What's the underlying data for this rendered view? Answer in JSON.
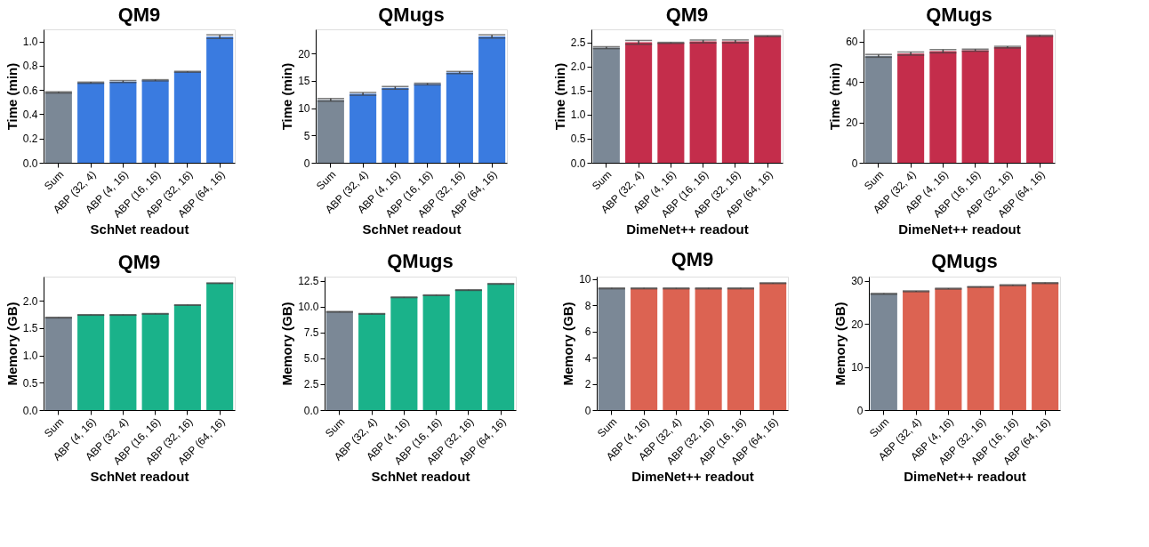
{
  "chart_data": [
    {
      "type": "bar",
      "title": "QM9",
      "xlabel": "SchNet readout",
      "ylabel": "Time (min)",
      "categories": [
        "Sum",
        "ABP (32, 4)",
        "ABP (4, 16)",
        "ABP (16, 16)",
        "ABP (32, 16)",
        "ABP (64, 16)"
      ],
      "values": [
        0.58,
        0.66,
        0.67,
        0.68,
        0.75,
        1.04
      ],
      "errors": [
        0.005,
        0.005,
        0.008,
        0.005,
        0.004,
        0.015
      ],
      "colors": [
        "#7b8896",
        "#3a7be0",
        "#3a7be0",
        "#3a7be0",
        "#3a7be0",
        "#3a7be0"
      ],
      "ylim": [
        0,
        1.1
      ],
      "yticks": [
        {
          "value": 0,
          "label": "0.0"
        },
        {
          "value": 0.2,
          "label": "0.2"
        },
        {
          "value": 0.4,
          "label": "0.4"
        },
        {
          "value": 0.6,
          "label": "0.6"
        },
        {
          "value": 0.8,
          "label": "0.8"
        },
        {
          "value": 1,
          "label": "1.0"
        }
      ],
      "grid": false
    },
    {
      "type": "bar",
      "title": "QMugs",
      "xlabel": "SchNet readout",
      "ylabel": "Time (min)",
      "categories": [
        "Sum",
        "ABP (32, 4)",
        "ABP (4, 16)",
        "ABP (16, 16)",
        "ABP (32, 16)",
        "ABP (64, 16)"
      ],
      "values": [
        11.5,
        12.6,
        13.7,
        14.4,
        16.5,
        23.1
      ],
      "errors": [
        0.25,
        0.25,
        0.25,
        0.15,
        0.2,
        0.3
      ],
      "colors": [
        "#7b8896",
        "#3a7be0",
        "#3a7be0",
        "#3a7be0",
        "#3a7be0",
        "#3a7be0"
      ],
      "ylim": [
        0,
        24.4
      ],
      "yticks": [
        0,
        5,
        10,
        15,
        20
      ],
      "grid": false
    },
    {
      "type": "bar",
      "title": "QM9",
      "xlabel": "DimeNet++ readout",
      "ylabel": "Time (min)",
      "categories": [
        "Sum",
        "ABP (32, 4)",
        "ABP (4, 16)",
        "ABP (16, 16)",
        "ABP (32, 16)",
        "ABP (64, 16)"
      ],
      "values": [
        2.39,
        2.5,
        2.49,
        2.52,
        2.52,
        2.63
      ],
      "errors": [
        0.02,
        0.04,
        0.01,
        0.03,
        0.03,
        0.01
      ],
      "colors": [
        "#7b8896",
        "#c42d4b",
        "#c42d4b",
        "#c42d4b",
        "#c42d4b",
        "#c42d4b"
      ],
      "ylim": [
        0,
        2.77
      ],
      "yticks": [
        {
          "value": 0,
          "label": "0.0"
        },
        {
          "value": 0.5,
          "label": "0.5"
        },
        {
          "value": 1,
          "label": "1.0"
        },
        {
          "value": 1.5,
          "label": "1.5"
        },
        {
          "value": 2,
          "label": "2.0"
        },
        {
          "value": 2.5,
          "label": "2.5"
        }
      ],
      "grid": false
    },
    {
      "type": "bar",
      "title": "QMugs",
      "xlabel": "DimeNet++ readout",
      "ylabel": "Time (min)",
      "categories": [
        "Sum",
        "ABP (32, 4)",
        "ABP (4, 16)",
        "ABP (16, 16)",
        "ABP (32, 16)",
        "ABP (64, 16)"
      ],
      "values": [
        52.9,
        54.0,
        55.2,
        55.7,
        57.2,
        62.8
      ],
      "errors": [
        0.7,
        0.8,
        0.8,
        0.5,
        0.4,
        0.3
      ],
      "colors": [
        "#7b8896",
        "#c42d4b",
        "#c42d4b",
        "#c42d4b",
        "#c42d4b",
        "#c42d4b"
      ],
      "ylim": [
        0,
        66
      ],
      "yticks": [
        0,
        20,
        40,
        60
      ],
      "grid": false
    },
    {
      "type": "bar",
      "title": "QM9",
      "xlabel": "SchNet readout",
      "ylabel": "Memory (GB)",
      "categories": [
        "Sum",
        "ABP (4, 16)",
        "ABP (32, 4)",
        "ABP (16, 16)",
        "ABP (32, 16)",
        "ABP (64, 16)"
      ],
      "values": [
        1.69,
        1.74,
        1.74,
        1.76,
        1.92,
        2.32
      ],
      "errors": [
        0.005,
        0.005,
        0.005,
        0.005,
        0.005,
        0.005
      ],
      "colors": [
        "#7b8896",
        "#1ab28a",
        "#1ab28a",
        "#1ab28a",
        "#1ab28a",
        "#1ab28a"
      ],
      "ylim": [
        0,
        2.44
      ],
      "yticks": [
        {
          "value": 0,
          "label": "0.0"
        },
        {
          "value": 0.5,
          "label": "0.5"
        },
        {
          "value": 1,
          "label": "1.0"
        },
        {
          "value": 1.5,
          "label": "1.5"
        },
        {
          "value": 2,
          "label": "2.0"
        }
      ],
      "grid": false
    },
    {
      "type": "bar",
      "title": "QMugs",
      "xlabel": "SchNet readout",
      "ylabel": "Memory (GB)",
      "categories": [
        "Sum",
        "ABP (32, 4)",
        "ABP (4, 16)",
        "ABP (16, 16)",
        "ABP (32, 16)",
        "ABP (64, 16)"
      ],
      "values": [
        9.5,
        9.3,
        10.9,
        11.1,
        11.6,
        12.2
      ],
      "errors": [
        0.03,
        0.03,
        0.03,
        0.03,
        0.03,
        0.03
      ],
      "colors": [
        "#7b8896",
        "#1ab28a",
        "#1ab28a",
        "#1ab28a",
        "#1ab28a",
        "#1ab28a"
      ],
      "ylim": [
        0,
        12.9
      ],
      "yticks": [
        {
          "value": 0,
          "label": "0.0"
        },
        {
          "value": 2.5,
          "label": "2.5"
        },
        {
          "value": 5,
          "label": "5.0"
        },
        {
          "value": 7.5,
          "label": "7.5"
        },
        {
          "value": 10,
          "label": "10.0"
        },
        {
          "value": 12.5,
          "label": "12.5"
        }
      ],
      "grid": false
    },
    {
      "type": "bar",
      "title": "QM9",
      "xlabel": "DimeNet++ readout",
      "ylabel": "Memory (GB)",
      "categories": [
        "Sum",
        "ABP (4, 16)",
        "ABP (32, 4)",
        "ABP (32, 16)",
        "ABP (16, 16)",
        "ABP (64, 16)"
      ],
      "values": [
        9.3,
        9.3,
        9.3,
        9.3,
        9.3,
        9.7
      ],
      "errors": [
        0.03,
        0.03,
        0.03,
        0.03,
        0.03,
        0.03
      ],
      "colors": [
        "#7b8896",
        "#dc6352",
        "#dc6352",
        "#dc6352",
        "#dc6352",
        "#dc6352"
      ],
      "ylim": [
        0,
        10.2
      ],
      "yticks": [
        0,
        2,
        4,
        6,
        8,
        10
      ],
      "grid": false
    },
    {
      "type": "bar",
      "title": "QMugs",
      "xlabel": "DimeNet++ readout",
      "ylabel": "Memory (GB)",
      "categories": [
        "Sum",
        "ABP (32, 4)",
        "ABP (4, 16)",
        "ABP (32, 16)",
        "ABP (16, 16)",
        "ABP (64, 16)"
      ],
      "values": [
        27.0,
        27.6,
        28.2,
        28.6,
        29.0,
        29.5
      ],
      "errors": [
        0.1,
        0.1,
        0.1,
        0.1,
        0.1,
        0.1
      ],
      "colors": [
        "#7b8896",
        "#dc6352",
        "#dc6352",
        "#dc6352",
        "#dc6352",
        "#dc6352"
      ],
      "ylim": [
        0,
        31
      ],
      "yticks": [
        0,
        10,
        20,
        30
      ],
      "grid": false
    }
  ]
}
